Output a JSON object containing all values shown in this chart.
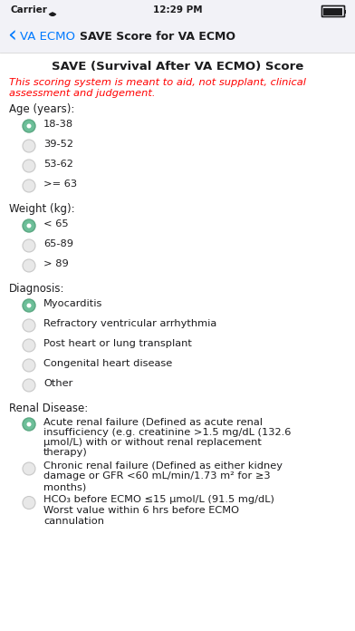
{
  "bg_color": "#f2f2f7",
  "white_bg": "#ffffff",
  "time_text": "12:29 PM",
  "nav_back_text": "VA ECMO",
  "nav_title_text": "SAVE Score for VA ECMO",
  "nav_blue": "#007aff",
  "page_title": "SAVE (Survival After VA ECMO) Score",
  "disclaimer_line1": "This scoring system is meant to aid, not supplant, clinical",
  "disclaimer_line2": "assessment and judgement.",
  "disclaimer_color": "#ff0000",
  "sections": [
    {
      "label": "Age (years):",
      "options": [
        "18-38",
        "39-52",
        "53-62",
        ">= 63"
      ],
      "selected": 0
    },
    {
      "label": "Weight (kg):",
      "options": [
        "< 65",
        "65-89",
        "> 89"
      ],
      "selected": 0
    },
    {
      "label": "Diagnosis:",
      "options": [
        "Myocarditis",
        "Refractory ventricular arrhythmia",
        "Post heart or lung transplant",
        "Congenital heart disease",
        "Other"
      ],
      "selected": 0
    },
    {
      "label": "Renal Disease:",
      "options": [
        [
          "Acute renal failure (Defined as acute renal",
          "insufficiency (e.g. creatinine >1.5 mg/dL (132.6",
          "μmol/L) with or without renal replacement",
          "therapy)"
        ],
        [
          "Chronic renal failure (Defined as either kidney",
          "damage or GFR <60 mL/min/1.73 m² for ≥3",
          "months)"
        ],
        [
          "HCO₃ before ECMO ≤15 μmol/L (91.5 mg/dL)",
          "Worst value within 6 hrs before ECMO",
          "cannulation"
        ]
      ],
      "selected": 0
    }
  ],
  "radio_selected_color": "#6dbf99",
  "radio_unselected_fill": "#e8e8e8",
  "radio_unselected_stroke": "#c8c8c8",
  "radio_selected_stroke": "#5aa882",
  "text_color": "#1c1c1e",
  "label_fontsize": 8.5,
  "option_fontsize": 8.2,
  "title_fontsize": 9.5,
  "disclaimer_fontsize": 8.2,
  "nav_fontsize": 9.5,
  "status_fontsize": 7.5
}
